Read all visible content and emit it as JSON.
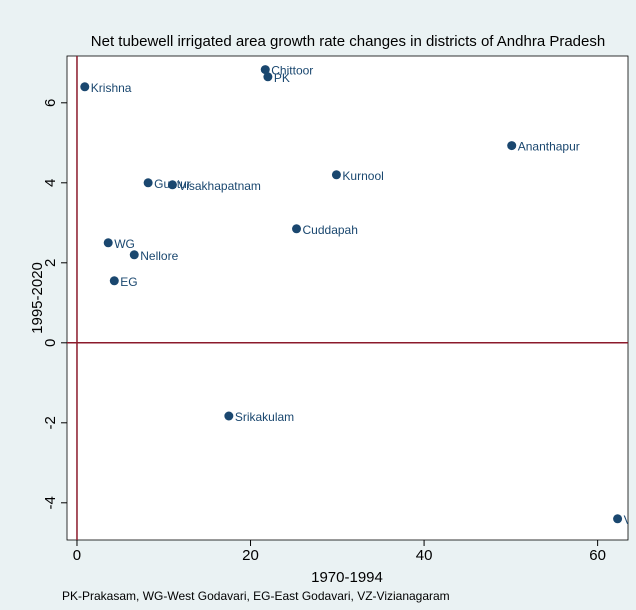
{
  "chart_data": {
    "type": "scatter",
    "title": "Net tubewell irrigated area growth rate changes in districts of Andhra Pradesh",
    "x_label": "1970-1994",
    "y_label": "1995-2020",
    "note": "PK-Prakasam, WG-West Godavari, EG-East Godavari, VZ-Vizianagaram",
    "labels": [
      "Krishna",
      "Chittoor",
      "PK",
      "Ananthapur",
      "Guntur",
      "Visakhapatnam",
      "Kurnool",
      "Cuddapah",
      "WG",
      "Nellore",
      "EG",
      "Srikakulam",
      "VZ"
    ],
    "x": [
      0.9,
      21.7,
      22.0,
      50.1,
      8.2,
      11.0,
      29.9,
      25.3,
      3.6,
      6.6,
      4.3,
      17.5,
      62.3
    ],
    "values": [
      6.4,
      6.83,
      6.65,
      4.93,
      4.0,
      3.95,
      4.2,
      2.85,
      2.5,
      2.2,
      1.55,
      -1.83,
      -4.4
    ],
    "color": "#1a476f",
    "xlim": [
      -1.15,
      63.5
    ],
    "ylim": [
      -4.93,
      7.17
    ],
    "xticks": [
      0,
      20,
      40,
      60
    ],
    "yticks": [
      -4,
      -2,
      0,
      2,
      4,
      6
    ],
    "xline": 0,
    "yline": 0,
    "ref_color": "#8b1a2b"
  }
}
